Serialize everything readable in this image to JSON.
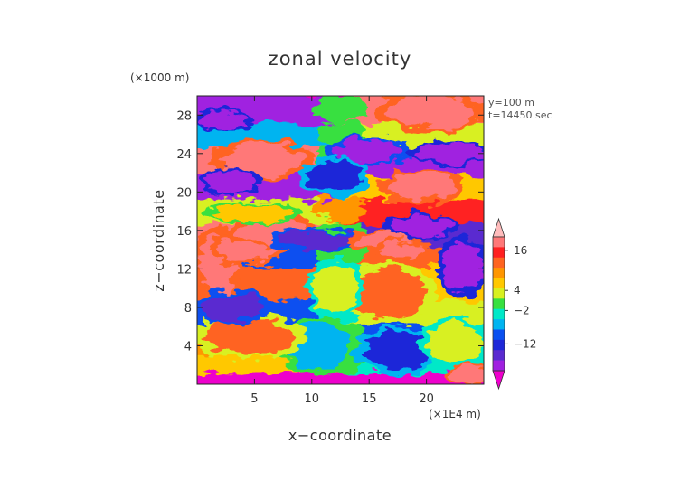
{
  "chart_data": {
    "type": "heatmap",
    "title": "zonal velocity",
    "xlabel": "x−coordinate",
    "ylabel": "z−coordinate",
    "x_unit_label": "(×1E4 m)",
    "y_unit_label": "(×1000 m)",
    "annotations": [
      "y=100 m",
      "t=14450 sec"
    ],
    "xlim": [
      0,
      25
    ],
    "ylim": [
      0,
      30
    ],
    "x_ticks": [
      5,
      10,
      15,
      20
    ],
    "x_tick_labels": [
      "5",
      "10",
      "15",
      "20"
    ],
    "y_ticks": [
      4,
      8,
      12,
      16,
      20,
      24,
      28
    ],
    "y_tick_labels": [
      "4",
      "8",
      "12",
      "16",
      "20",
      "24",
      "28"
    ],
    "colorbar": {
      "tick_labels": [
        "16",
        "4",
        "−2",
        "−12"
      ],
      "tick_values": [
        16,
        4,
        -2,
        -12
      ],
      "extend": "both",
      "value_range": [
        -20,
        20
      ],
      "colors_low_to_high": [
        "#ee00cc",
        "#a020e0",
        "#5a2ad0",
        "#1e28d8",
        "#0a50f0",
        "#00b4f0",
        "#00e8c8",
        "#38e040",
        "#d8f020",
        "#ffc800",
        "#ff9600",
        "#ff6420",
        "#ff2020",
        "#ff7878",
        "#ffbcbc"
      ]
    },
    "bands": [
      {
        "z": [
          0,
          1.4
        ],
        "left": -20,
        "right": -20
      },
      {
        "z": [
          1.4,
          3.5
        ],
        "left": 6,
        "right": -4
      },
      {
        "z": [
          3.5,
          6.5
        ],
        "left": 8,
        "right": -10
      },
      {
        "z": [
          6.5,
          9
        ],
        "left": -8,
        "right": 2
      },
      {
        "z": [
          9,
          12.5
        ],
        "left": 12,
        "right": 6
      },
      {
        "z": [
          12.5,
          14.5
        ],
        "left": -10,
        "right": 10
      },
      {
        "z": [
          14.5,
          17
        ],
        "left": 16,
        "right": -14
      },
      {
        "z": [
          17,
          19.5
        ],
        "left": 4,
        "right": 14
      },
      {
        "z": [
          19.5,
          22
        ],
        "left": -16,
        "right": 6
      },
      {
        "z": [
          22,
          25
        ],
        "left": 16,
        "right": -16
      },
      {
        "z": [
          25,
          27.5
        ],
        "left": -6,
        "right": 4
      },
      {
        "z": [
          27.5,
          30
        ],
        "left": -18,
        "right": 18
      }
    ],
    "blobs": [
      {
        "x": 1.8,
        "z": 12.5,
        "rx": 1.6,
        "rz": 3.2,
        "value": 18
      },
      {
        "x": 4.5,
        "z": 14.2,
        "rx": 2.8,
        "rz": 1.4,
        "value": 16
      },
      {
        "x": 6.5,
        "z": 16.0,
        "rx": 3.0,
        "rz": 1.3,
        "value": 18
      },
      {
        "x": 5.6,
        "z": 23.3,
        "rx": 3.6,
        "rz": 1.8,
        "value": 18
      },
      {
        "x": 3.0,
        "z": 21.0,
        "rx": 2.2,
        "rz": 1.2,
        "value": -18
      },
      {
        "x": 2.2,
        "z": 27.5,
        "rx": 2.0,
        "rz": 1.0,
        "value": -18
      },
      {
        "x": 10.5,
        "z": 15.0,
        "rx": 3.5,
        "rz": 1.0,
        "value": -14
      },
      {
        "x": 16.5,
        "z": 15.0,
        "rx": 2.5,
        "rz": 1.0,
        "value": 18
      },
      {
        "x": 18.0,
        "z": 14.0,
        "rx": 2.0,
        "rz": 0.8,
        "value": 16
      },
      {
        "x": 19.5,
        "z": 16.5,
        "rx": 2.6,
        "rz": 1.1,
        "value": -18
      },
      {
        "x": 23.2,
        "z": 12.3,
        "rx": 1.8,
        "rz": 2.5,
        "value": -18
      },
      {
        "x": 19.5,
        "z": 20.5,
        "rx": 3.0,
        "rz": 1.4,
        "value": 18
      },
      {
        "x": 20.5,
        "z": 28.3,
        "rx": 4.0,
        "rz": 1.7,
        "value": 18
      },
      {
        "x": 15.0,
        "z": 24.2,
        "rx": 3.0,
        "rz": 1.2,
        "value": -16
      },
      {
        "x": 22.0,
        "z": 24.0,
        "rx": 3.0,
        "rz": 1.0,
        "value": -18
      },
      {
        "x": 12.0,
        "z": 21.8,
        "rx": 2.5,
        "rz": 1.5,
        "value": -12
      },
      {
        "x": 10.5,
        "z": 4.0,
        "rx": 2.8,
        "rz": 2.5,
        "value": -6
      },
      {
        "x": 17.5,
        "z": 3.5,
        "rx": 3.0,
        "rz": 2.0,
        "value": -12
      },
      {
        "x": 22.5,
        "z": 4.5,
        "rx": 2.5,
        "rz": 2.0,
        "value": 4
      },
      {
        "x": 16.5,
        "z": 9.5,
        "rx": 3.5,
        "rz": 2.5,
        "value": 10
      },
      {
        "x": 12.0,
        "z": 10.0,
        "rx": 2.0,
        "rz": 2.5,
        "value": 2
      },
      {
        "x": 4.5,
        "z": 5.0,
        "rx": 4.0,
        "rz": 2.0,
        "value": 10
      },
      {
        "x": 3.0,
        "z": 8.0,
        "rx": 2.5,
        "rz": 1.5,
        "value": -14
      },
      {
        "x": 23.8,
        "z": 1.0,
        "rx": 1.5,
        "rz": 1.0,
        "value": 18
      },
      {
        "x": 5.0,
        "z": 17.8,
        "rx": 3.5,
        "rz": 0.9,
        "value": 6
      }
    ]
  }
}
